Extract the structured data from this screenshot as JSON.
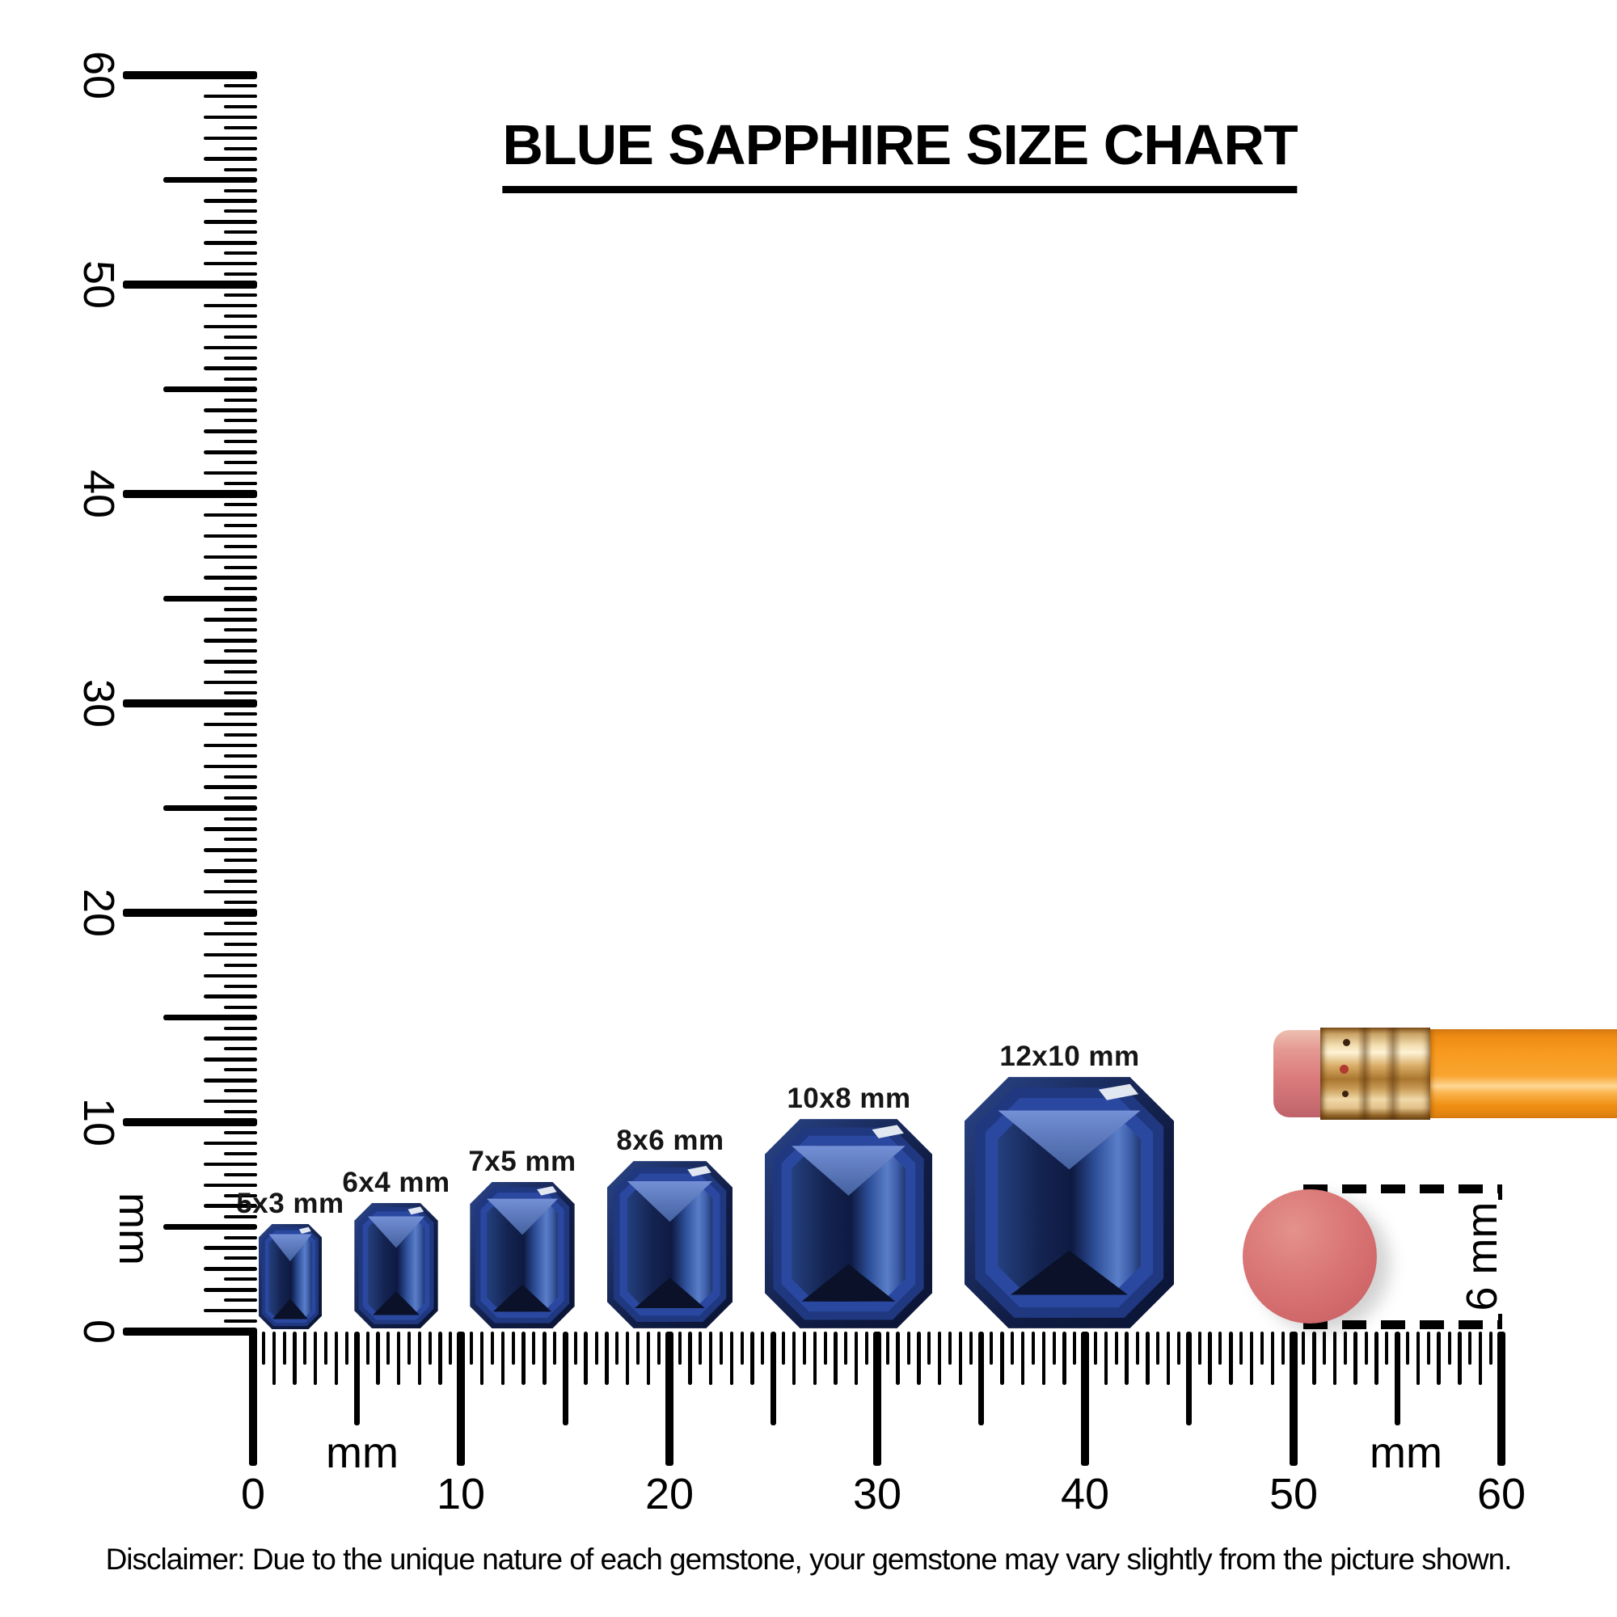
{
  "title": {
    "text": "BLUE SAPPHIRE SIZE CHART"
  },
  "rulers": {
    "unit_label": "mm",
    "min_mm": 0,
    "max_mm": 60,
    "tick_step_mm": 0.5,
    "major_labels": [
      "0",
      "10",
      "20",
      "30",
      "40",
      "50",
      "60"
    ]
  },
  "gems": [
    {
      "label": "5x3 mm",
      "width_mm": 3,
      "length_mm": 5
    },
    {
      "label": "6x4 mm",
      "width_mm": 4,
      "length_mm": 6
    },
    {
      "label": "7x5 mm",
      "width_mm": 5,
      "length_mm": 7
    },
    {
      "label": "8x6 mm",
      "width_mm": 6,
      "length_mm": 8
    },
    {
      "label": "10x8 mm",
      "width_mm": 8,
      "length_mm": 10
    },
    {
      "label": "12x10 mm",
      "width_mm": 10,
      "length_mm": 12
    }
  ],
  "measurement": {
    "label": "6 mm",
    "eraser_diameter_mm": 6
  },
  "disclaimer": {
    "text": "Disclaimer: Due to the unique nature of each gemstone, your gemstone may vary slightly from the picture shown."
  },
  "colors": {
    "ink": "#000000",
    "gem_rim_light": "#2a4487",
    "gem_rim_dark": "#0b1434",
    "gem_step1": "#1f3880",
    "gem_step2": "#2a48a0",
    "gem_table_left": "#24407e",
    "gem_table_dark": "#0e1a42",
    "gem_table_right": "#5b7ec8",
    "gem_v_light": "#7490d6",
    "gem_v_dark": "#44619f",
    "gem_chevron": "#0a1128",
    "gem_glint": "#edf1f8",
    "pencil_body": "#f89a1f",
    "pencil_ferrule": "#d8ab64",
    "pencil_eraser": "#db7b7c",
    "eraser_tip": "#d6696a"
  }
}
